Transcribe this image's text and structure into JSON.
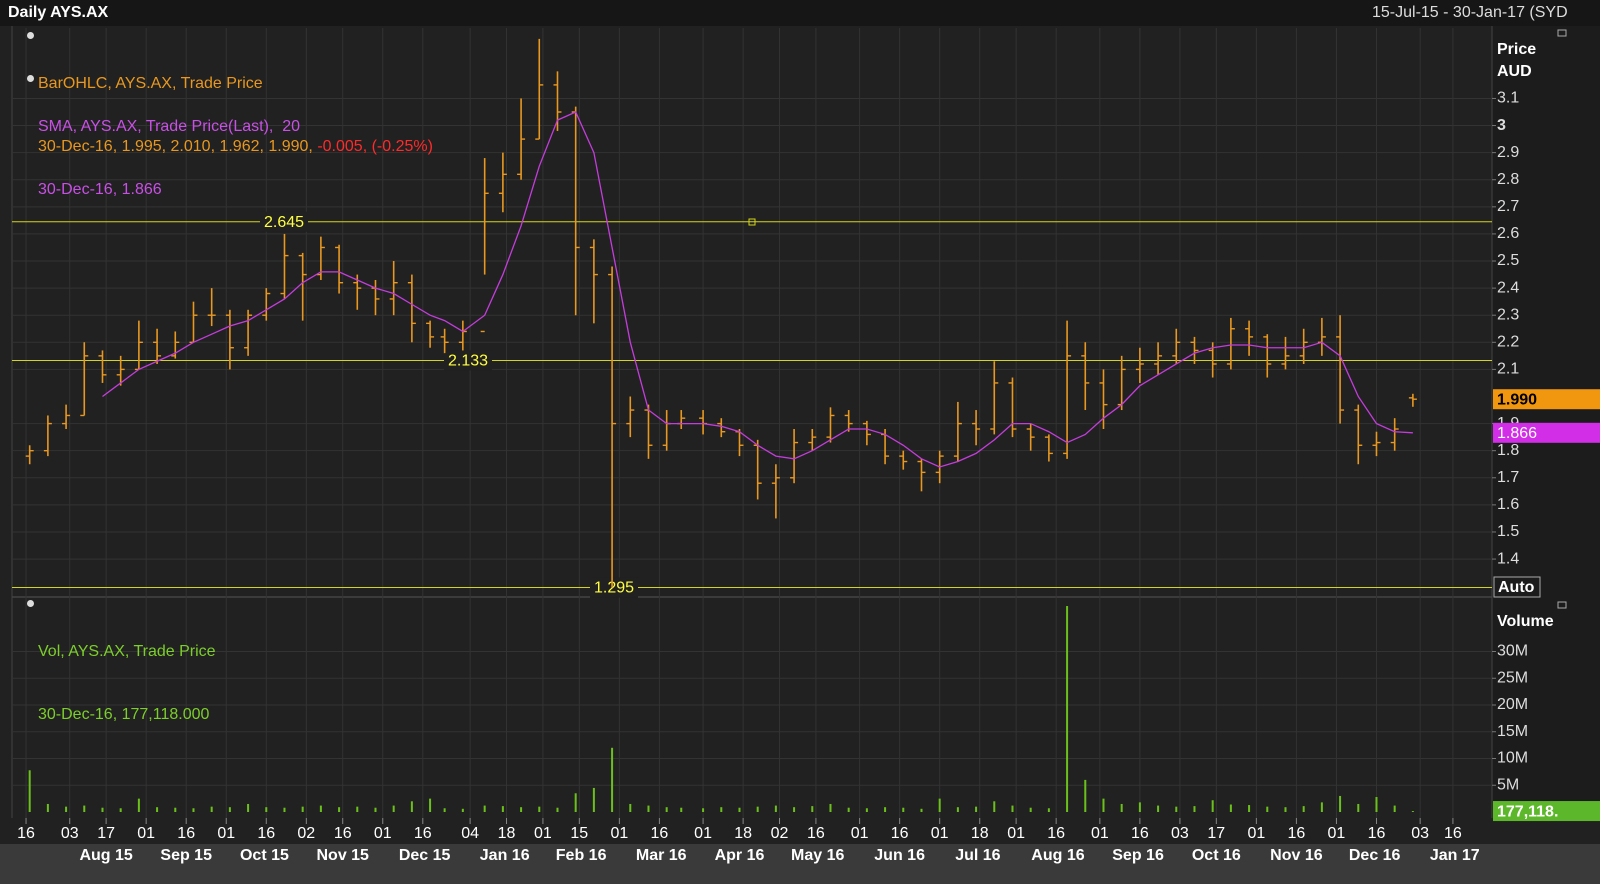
{
  "chart_data": [
    {
      "type": "ohlc",
      "title": "Daily AYS.AX",
      "date_range": "15-Jul-15 - 30-Jan-17 (SYD",
      "y_label": [
        "Price",
        "AUD"
      ],
      "scale_mode": "Auto",
      "grid": true,
      "x": [
        "2015-07-17",
        "2015-07-24",
        "2015-07-31",
        "2015-08-07",
        "2015-08-14",
        "2015-08-21",
        "2015-08-28",
        "2015-09-04",
        "2015-09-11",
        "2015-09-18",
        "2015-09-25",
        "2015-10-02",
        "2015-10-09",
        "2015-10-16",
        "2015-10-23",
        "2015-10-30",
        "2015-11-06",
        "2015-11-13",
        "2015-11-20",
        "2015-11-27",
        "2015-12-04",
        "2015-12-11",
        "2015-12-18",
        "2015-12-24",
        "2015-12-31",
        "2016-01-08",
        "2016-01-15",
        "2016-01-22",
        "2016-01-29",
        "2016-02-05",
        "2016-02-12",
        "2016-02-19",
        "2016-02-26",
        "2016-03-04",
        "2016-03-11",
        "2016-03-18",
        "2016-03-24",
        "2016-04-01",
        "2016-04-08",
        "2016-04-15",
        "2016-04-22",
        "2016-04-29",
        "2016-05-06",
        "2016-05-13",
        "2016-05-20",
        "2016-05-27",
        "2016-06-03",
        "2016-06-10",
        "2016-06-17",
        "2016-06-24",
        "2016-07-01",
        "2016-07-08",
        "2016-07-15",
        "2016-07-22",
        "2016-07-29",
        "2016-08-05",
        "2016-08-12",
        "2016-08-19",
        "2016-08-26",
        "2016-09-02",
        "2016-09-09",
        "2016-09-16",
        "2016-09-23",
        "2016-09-30",
        "2016-10-07",
        "2016-10-14",
        "2016-10-21",
        "2016-10-28",
        "2016-11-04",
        "2016-11-11",
        "2016-11-18",
        "2016-11-25",
        "2016-12-02",
        "2016-12-09",
        "2016-12-16",
        "2016-12-23",
        "2016-12-30"
      ],
      "ohlc": {
        "name": "BarOHLC, AYS.AX, Trade Price",
        "legend_detail": "30-Dec-16, 1.995, 2.010, 1.962, 1.990,",
        "legend_change": "-0.005, (-0.25%)",
        "color": "#e8981f",
        "current_label": "1.990",
        "open": [
          1.78,
          1.8,
          1.9,
          1.93,
          2.15,
          2.08,
          2.1,
          2.2,
          2.15,
          2.2,
          2.3,
          2.3,
          2.18,
          2.3,
          2.38,
          2.52,
          2.45,
          2.55,
          2.42,
          2.4,
          2.36,
          2.42,
          2.27,
          2.22,
          2.2,
          2.24,
          2.75,
          2.82,
          2.95,
          3.15,
          3.05,
          2.55,
          2.45,
          1.9,
          1.95,
          1.82,
          1.9,
          1.92,
          1.9,
          1.87,
          1.82,
          1.68,
          1.7,
          1.83,
          1.85,
          1.93,
          1.9,
          1.86,
          1.78,
          1.76,
          1.72,
          1.78,
          1.9,
          1.88,
          2.05,
          1.88,
          1.85,
          1.79,
          2.15,
          2.05,
          1.97,
          2.1,
          2.12,
          2.15,
          2.2,
          2.17,
          2.12,
          2.25,
          2.22,
          2.12,
          2.15,
          2.2,
          2.22,
          1.95,
          1.82,
          1.83,
          1.995
        ],
        "high": [
          1.82,
          1.93,
          1.97,
          2.2,
          2.17,
          2.15,
          2.28,
          2.25,
          2.24,
          2.35,
          2.4,
          2.32,
          2.32,
          2.4,
          2.6,
          2.53,
          2.59,
          2.56,
          2.45,
          2.43,
          2.5,
          2.45,
          2.28,
          2.25,
          2.28,
          2.88,
          2.9,
          3.1,
          3.32,
          3.2,
          3.07,
          2.58,
          2.48,
          2.0,
          1.97,
          1.95,
          1.95,
          1.95,
          1.92,
          1.88,
          1.84,
          1.75,
          1.88,
          1.88,
          1.96,
          1.95,
          1.91,
          1.88,
          1.8,
          1.77,
          1.8,
          1.98,
          1.95,
          2.13,
          2.07,
          1.9,
          1.86,
          2.28,
          2.2,
          2.1,
          2.15,
          2.18,
          2.2,
          2.25,
          2.22,
          2.2,
          2.29,
          2.28,
          2.23,
          2.22,
          2.25,
          2.29,
          2.3,
          1.97,
          1.87,
          1.92,
          2.01
        ],
        "low": [
          1.75,
          1.78,
          1.88,
          1.93,
          2.05,
          2.04,
          2.1,
          2.12,
          2.14,
          2.2,
          2.26,
          2.1,
          2.15,
          2.28,
          2.36,
          2.28,
          2.43,
          2.38,
          2.32,
          2.3,
          2.3,
          2.2,
          2.18,
          2.16,
          2.17,
          2.45,
          2.68,
          2.8,
          2.95,
          2.98,
          2.3,
          2.27,
          1.295,
          1.85,
          1.77,
          1.8,
          1.88,
          1.86,
          1.85,
          1.78,
          1.62,
          1.55,
          1.68,
          1.8,
          1.83,
          1.87,
          1.82,
          1.75,
          1.73,
          1.65,
          1.68,
          1.76,
          1.82,
          1.86,
          1.85,
          1.8,
          1.76,
          1.77,
          1.95,
          1.88,
          1.95,
          2.05,
          2.08,
          2.12,
          2.12,
          2.07,
          2.1,
          2.15,
          2.07,
          2.1,
          2.12,
          2.15,
          1.9,
          1.75,
          1.78,
          1.8,
          1.962
        ],
        "close": [
          1.8,
          1.9,
          1.93,
          2.15,
          2.08,
          2.1,
          2.2,
          2.15,
          2.2,
          2.3,
          2.3,
          2.18,
          2.3,
          2.38,
          2.52,
          2.45,
          2.55,
          2.42,
          2.4,
          2.36,
          2.42,
          2.27,
          2.22,
          2.2,
          2.24,
          2.75,
          2.82,
          2.95,
          3.15,
          3.05,
          2.55,
          2.45,
          1.9,
          1.95,
          1.82,
          1.9,
          1.92,
          1.9,
          1.87,
          1.82,
          1.68,
          1.7,
          1.83,
          1.85,
          1.93,
          1.9,
          1.86,
          1.78,
          1.76,
          1.72,
          1.78,
          1.9,
          1.88,
          2.05,
          1.88,
          1.85,
          1.79,
          2.15,
          2.05,
          1.97,
          2.1,
          2.12,
          2.15,
          2.2,
          2.17,
          2.12,
          2.25,
          2.22,
          2.12,
          2.15,
          2.2,
          2.22,
          1.95,
          1.82,
          1.83,
          1.88,
          1.99
        ]
      },
      "sma": {
        "name": "SMA, AYS.AX, Trade Price(Last),  20",
        "legend_detail": "30-Dec-16, 1.866",
        "color": "#c43ddc",
        "values": [
          null,
          null,
          null,
          null,
          2.0,
          2.05,
          2.1,
          2.13,
          2.16,
          2.2,
          2.23,
          2.26,
          2.28,
          2.32,
          2.36,
          2.42,
          2.46,
          2.46,
          2.43,
          2.4,
          2.38,
          2.34,
          2.3,
          2.28,
          2.24,
          2.3,
          2.45,
          2.63,
          2.85,
          3.02,
          3.05,
          2.9,
          2.55,
          2.2,
          1.95,
          1.9,
          1.9,
          1.9,
          1.89,
          1.87,
          1.82,
          1.78,
          1.77,
          1.8,
          1.84,
          1.88,
          1.88,
          1.86,
          1.82,
          1.77,
          1.74,
          1.76,
          1.79,
          1.84,
          1.9,
          1.9,
          1.87,
          1.83,
          1.86,
          1.92,
          1.97,
          2.04,
          2.08,
          2.12,
          2.16,
          2.18,
          2.19,
          2.19,
          2.18,
          2.18,
          2.18,
          2.2,
          2.15,
          2.0,
          1.9,
          1.87,
          1.866
        ]
      },
      "hlines": [
        2.645,
        2.133,
        1.295
      ],
      "hline_color": "#d4d41a",
      "ylim": [
        1.26,
        3.36
      ],
      "yticks": [
        1.4,
        1.5,
        1.6,
        1.7,
        1.8,
        1.9,
        2.1,
        2.2,
        2.3,
        2.4,
        2.5,
        2.6,
        2.7,
        2.8,
        2.9,
        3,
        3.1
      ],
      "xticks": [
        {
          "value": "2015-07-16",
          "label": "16"
        },
        {
          "value": "2015-08-03",
          "label": "03"
        },
        {
          "value": "2015-08-17",
          "label": "17"
        },
        {
          "value": "2015-09-01",
          "label": "01"
        },
        {
          "value": "2015-09-16",
          "label": "16"
        },
        {
          "value": "2015-10-01",
          "label": "01"
        },
        {
          "value": "2015-10-16",
          "label": "16"
        },
        {
          "value": "2015-11-02",
          "label": "02"
        },
        {
          "value": "2015-11-16",
          "label": "16"
        },
        {
          "value": "2015-12-01",
          "label": "01"
        },
        {
          "value": "2015-12-16",
          "label": "16"
        },
        {
          "value": "2016-01-04",
          "label": "04"
        },
        {
          "value": "2016-01-18",
          "label": "18"
        },
        {
          "value": "2016-02-01",
          "label": "01"
        },
        {
          "value": "2016-02-15",
          "label": "15"
        },
        {
          "value": "2016-03-01",
          "label": "01"
        },
        {
          "value": "2016-03-16",
          "label": "16"
        },
        {
          "value": "2016-04-01",
          "label": "01"
        },
        {
          "value": "2016-04-18",
          "label": "18"
        },
        {
          "value": "2016-05-02",
          "label": "02"
        },
        {
          "value": "2016-05-16",
          "label": "16"
        },
        {
          "value": "2016-06-01",
          "label": "01"
        },
        {
          "value": "2016-06-16",
          "label": "16"
        },
        {
          "value": "2016-07-01",
          "label": "01"
        },
        {
          "value": "2016-07-18",
          "label": "18"
        },
        {
          "value": "2016-08-01",
          "label": "01"
        },
        {
          "value": "2016-08-16",
          "label": "16"
        },
        {
          "value": "2016-09-01",
          "label": "01"
        },
        {
          "value": "2016-09-16",
          "label": "16"
        },
        {
          "value": "2016-10-03",
          "label": "03"
        },
        {
          "value": "2016-10-17",
          "label": "17"
        },
        {
          "value": "2016-11-01",
          "label": "01"
        },
        {
          "value": "2016-11-16",
          "label": "16"
        },
        {
          "value": "2016-12-01",
          "label": "01"
        },
        {
          "value": "2016-12-16",
          "label": "16"
        },
        {
          "value": "2017-01-03",
          "label": "03"
        },
        {
          "value": "2017-01-16",
          "label": "16"
        }
      ],
      "month_labels": [
        {
          "value": "2015-08",
          "label": "Aug 15"
        },
        {
          "value": "2015-09",
          "label": "Sep 15"
        },
        {
          "value": "2015-10",
          "label": "Oct 15"
        },
        {
          "value": "2015-11",
          "label": "Nov 15"
        },
        {
          "value": "2015-12",
          "label": "Dec 15"
        },
        {
          "value": "2016-01",
          "label": "Jan 16"
        },
        {
          "value": "2016-02",
          "label": "Feb 16"
        },
        {
          "value": "2016-03",
          "label": "Mar 16"
        },
        {
          "value": "2016-04",
          "label": "Apr 16"
        },
        {
          "value": "2016-05",
          "label": "May 16"
        },
        {
          "value": "2016-06",
          "label": "Jun 16"
        },
        {
          "value": "2016-07",
          "label": "Jul 16"
        },
        {
          "value": "2016-08",
          "label": "Aug 16"
        },
        {
          "value": "2016-09",
          "label": "Sep 16"
        },
        {
          "value": "2016-10",
          "label": "Oct 16"
        },
        {
          "value": "2016-11",
          "label": "Nov 16"
        },
        {
          "value": "2016-12",
          "label": "Dec 16"
        },
        {
          "value": "2017-01",
          "label": "Jan 17"
        }
      ]
    },
    {
      "type": "bar",
      "y_label": "Volume",
      "series": [
        {
          "name": "Vol, AYS.AX, Trade Price",
          "legend_detail": "30-Dec-16, 177,118.000",
          "color": "#6cc01c",
          "current_label": "177,118.",
          "values": [
            7800000,
            1500000,
            1000000,
            1200000,
            800000,
            700000,
            2500000,
            900000,
            800000,
            700000,
            1000000,
            900000,
            1500000,
            900000,
            800000,
            1000000,
            1200000,
            900000,
            1000000,
            800000,
            1200000,
            2000000,
            2500000,
            700000,
            600000,
            1200000,
            1100000,
            900000,
            1000000,
            800000,
            3500000,
            4500000,
            12000000,
            1500000,
            1200000,
            900000,
            800000,
            700000,
            900000,
            800000,
            1000000,
            1200000,
            900000,
            1100000,
            1500000,
            800000,
            700000,
            900000,
            800000,
            600000,
            2500000,
            900000,
            1000000,
            2000000,
            1200000,
            800000,
            700000,
            38500000,
            6000000,
            2500000,
            1500000,
            1800000,
            1200000,
            1000000,
            1100000,
            2200000,
            1400000,
            1300000,
            1000000,
            900000,
            1100000,
            1800000,
            3000000,
            1500000,
            2800000,
            1200000,
            177118
          ]
        }
      ],
      "ylim": [
        0,
        40000000
      ],
      "yticks": [
        {
          "value": 5000000,
          "label": "5M"
        },
        {
          "value": 10000000,
          "label": "10M"
        },
        {
          "value": 15000000,
          "label": "15M"
        },
        {
          "value": 20000000,
          "label": "20M"
        },
        {
          "value": 25000000,
          "label": "25M"
        },
        {
          "value": 30000000,
          "label": "30M"
        }
      ]
    }
  ]
}
